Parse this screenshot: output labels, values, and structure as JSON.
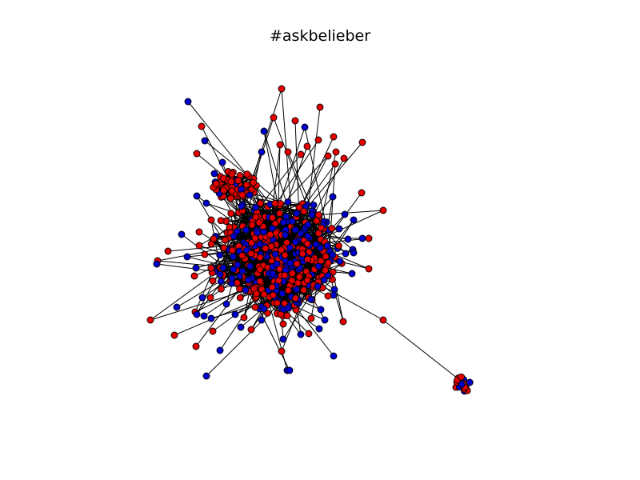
{
  "title": "#askbelieber",
  "node_colors": {
    "group_a": "#e50000",
    "group_b": "#0000cc",
    "outline": "#000000",
    "edge": "#000000",
    "background": "#ffffff"
  }
}
